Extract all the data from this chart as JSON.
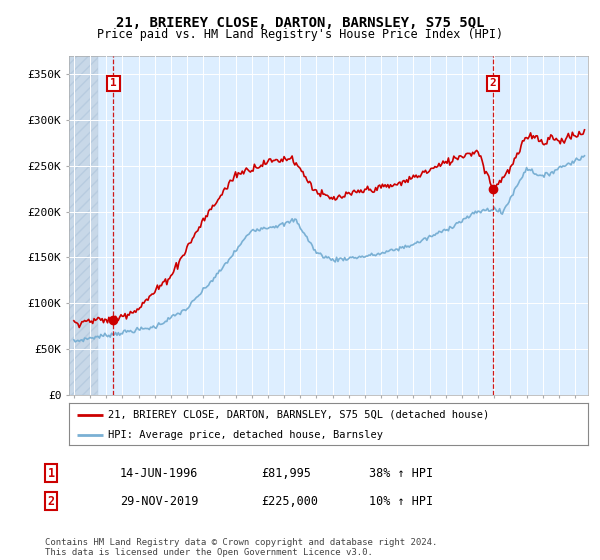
{
  "title": "21, BRIEREY CLOSE, DARTON, BARNSLEY, S75 5QL",
  "subtitle": "Price paid vs. HM Land Registry's House Price Index (HPI)",
  "ylim": [
    0,
    370000
  ],
  "yticks": [
    0,
    50000,
    100000,
    150000,
    200000,
    250000,
    300000,
    350000
  ],
  "ytick_labels": [
    "£0",
    "£50K",
    "£100K",
    "£150K",
    "£200K",
    "£250K",
    "£300K",
    "£350K"
  ],
  "xlim_start": 1993.7,
  "xlim_end": 2025.8,
  "price_paid_color": "#cc0000",
  "hpi_color": "#7ab0d4",
  "plot_bg_color": "#ddeeff",
  "hatch_color": "#c8d8e8",
  "grid_color": "#ffffff",
  "point1_x": 1996.45,
  "point1_y": 81995,
  "point1_label": "1",
  "point2_x": 2019.91,
  "point2_y": 225000,
  "point2_label": "2",
  "legend_line1": "21, BRIEREY CLOSE, DARTON, BARNSLEY, S75 5QL (detached house)",
  "legend_line2": "HPI: Average price, detached house, Barnsley",
  "table_row1": [
    "1",
    "14-JUN-1996",
    "£81,995",
    "38% ↑ HPI"
  ],
  "table_row2": [
    "2",
    "29-NOV-2019",
    "£225,000",
    "10% ↑ HPI"
  ],
  "footer": "Contains HM Land Registry data © Crown copyright and database right 2024.\nThis data is licensed under the Open Government Licence v3.0.",
  "background_color": "#ffffff"
}
